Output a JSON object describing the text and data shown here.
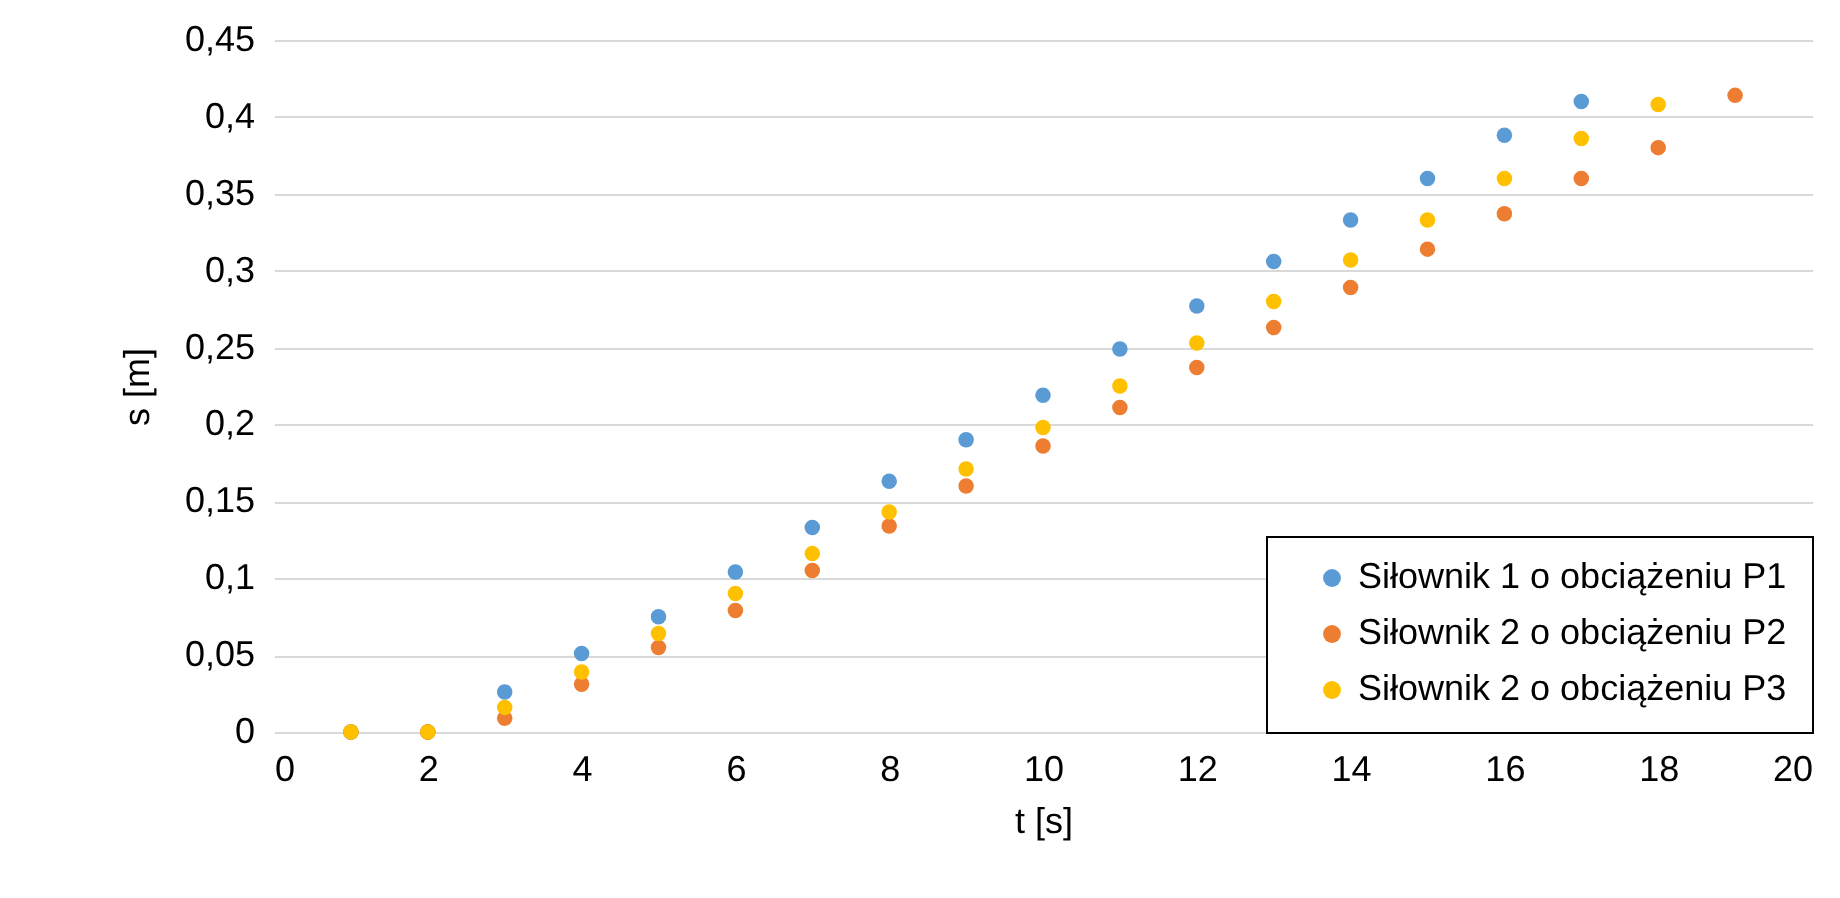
{
  "chart_data": {
    "type": "scatter",
    "xlabel": "t [s]",
    "ylabel": "s [m]",
    "xlim": [
      0,
      20
    ],
    "xticks": [
      0,
      2,
      4,
      6,
      8,
      10,
      12,
      14,
      16,
      18,
      20
    ],
    "ylim": [
      0,
      0.45
    ],
    "yticks": [
      {
        "value": 0,
        "label": "0"
      },
      {
        "value": 0.05,
        "label": "0,05"
      },
      {
        "value": 0.1,
        "label": "0,1"
      },
      {
        "value": 0.15,
        "label": "0,15"
      },
      {
        "value": 0.2,
        "label": "0,2"
      },
      {
        "value": 0.25,
        "label": "0,25"
      },
      {
        "value": 0.3,
        "label": "0,3"
      },
      {
        "value": 0.35,
        "label": "0,35"
      },
      {
        "value": 0.4,
        "label": "0,4"
      },
      {
        "value": 0.45,
        "label": "0,45"
      }
    ],
    "grid": "y",
    "legend": "bottom right",
    "marker": "circle",
    "series": [
      {
        "name": "Siłownik 1 o obciążeniu P1",
        "color": "#5b9bd5",
        "x": [
          1,
          2,
          3,
          4,
          5,
          6,
          7,
          8,
          9,
          10,
          11,
          12,
          13,
          14,
          15,
          16,
          17
        ],
        "values": [
          0,
          0,
          0.026,
          0.051,
          0.075,
          0.104,
          0.133,
          0.163,
          0.19,
          0.219,
          0.249,
          0.277,
          0.306,
          0.333,
          0.36,
          0.388,
          0.41
        ]
      },
      {
        "name": "Siłownik 2 o obciążeniu P2",
        "color": "#ed7d31",
        "x": [
          1,
          2,
          3,
          4,
          5,
          6,
          7,
          8,
          9,
          10,
          11,
          12,
          13,
          14,
          15,
          16,
          17,
          18,
          19
        ],
        "values": [
          0,
          0,
          0.009,
          0.031,
          0.055,
          0.079,
          0.105,
          0.134,
          0.16,
          0.186,
          0.211,
          0.237,
          0.263,
          0.289,
          0.314,
          0.337,
          0.36,
          0.38,
          0.414
        ]
      },
      {
        "name": "Siłownik 2 o obciążeniu P3",
        "color": "#ffc000",
        "x": [
          1,
          2,
          3,
          4,
          5,
          6,
          7,
          8,
          9,
          10,
          11,
          12,
          13,
          14,
          15,
          16,
          17,
          18
        ],
        "values": [
          0,
          0,
          0.016,
          0.039,
          0.064,
          0.09,
          0.116,
          0.143,
          0.171,
          0.198,
          0.225,
          0.253,
          0.28,
          0.307,
          0.333,
          0.36,
          0.386,
          0.408
        ]
      }
    ]
  }
}
